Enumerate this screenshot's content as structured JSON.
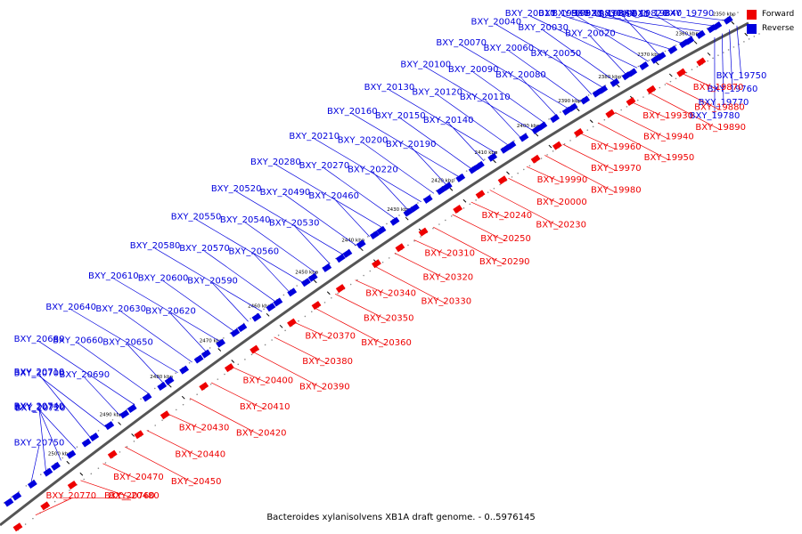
{
  "caption": "Bacteroides xylanisolvens XB1A draft genome. - 0..5976145",
  "legend": [
    {
      "label": "Forward",
      "color": "#ee0000"
    },
    {
      "label": "Reverse",
      "color": "#0000dd"
    }
  ],
  "colors": {
    "forward": "#ee0000",
    "reverse": "#0000dd",
    "backbone": "#555555",
    "tick": "#999999"
  },
  "scale_labels": [
    "2350 kbp",
    "2360 kbp",
    "2370 kbp",
    "2380 kbp",
    "2390 kbp",
    "2400 kbp",
    "2410 kbp",
    "2420 kbp",
    "2430 kbp",
    "2440 kbp",
    "2450 kbp",
    "2460 kbp",
    "2470 kbp",
    "2480 kbp",
    "2490 kbp",
    "2500 kbp"
  ],
  "reverse_genes": [
    "BXY_19790",
    "BXY_19820",
    "BXY_19830",
    "BXY_19840",
    "BXY_19860",
    "BXY_19900",
    "BXY_19910",
    "BXY_19920",
    "BXY_20010",
    "BXY_20020",
    "BXY_20030",
    "BXY_20040",
    "BXY_20050",
    "BXY_20060",
    "BXY_20070",
    "BXY_20080",
    "BXY_20090",
    "BXY_20100",
    "BXY_20110",
    "BXY_20120",
    "BXY_20130",
    "BXY_20140",
    "BXY_20150",
    "BXY_20160",
    "BXY_20190",
    "BXY_20200",
    "BXY_20210",
    "BXY_20220",
    "BXY_20270",
    "BXY_20280",
    "BXY_20460",
    "BXY_20490",
    "BXY_20520",
    "BXY_20530",
    "BXY_20540",
    "BXY_20550",
    "BXY_20560",
    "BXY_20570",
    "BXY_20580",
    "BXY_20590",
    "BXY_20600",
    "BXY_20610",
    "BXY_20620",
    "BXY_20630",
    "BXY_20640",
    "BXY_20650",
    "BXY_20660",
    "BXY_20680",
    "BXY_20690",
    "BXY_20700",
    "BXY_20710",
    "BXY_20720",
    "BXY_20730",
    "BXY_20740",
    "BXY_20750"
  ],
  "reverse_genes_right": [
    "BXY_19750",
    "BXY_19760",
    "BXY_19770",
    "BXY_19780"
  ],
  "forward_genes": [
    "BXY_19870",
    "BXY_19880",
    "BXY_19890",
    "BXY_19930",
    "BXY_19940",
    "BXY_19950",
    "BXY_19960",
    "BXY_19970",
    "BXY_19980",
    "BXY_19990",
    "BXY_20000",
    "BXY_20230",
    "BXY_20240",
    "BXY_20250",
    "BXY_20290",
    "BXY_20310",
    "BXY_20320",
    "BXY_20330",
    "BXY_20340",
    "BXY_20350",
    "BXY_20360",
    "BXY_20370",
    "BXY_20380",
    "BXY_20390",
    "BXY_20400",
    "BXY_20410",
    "BXY_20420",
    "BXY_20430",
    "BXY_20440",
    "BXY_20450",
    "BXY_20470",
    "BXY_20480",
    "BXY_20760",
    "BXY_20770"
  ]
}
